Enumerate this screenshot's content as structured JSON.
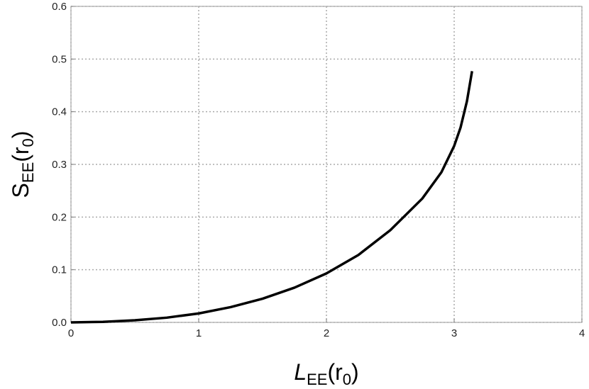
{
  "chart_data": {
    "type": "line",
    "xlabel": {
      "main": "L",
      "sub": "EE",
      "open": "(r",
      "sub2": "0",
      "close": ")"
    },
    "ylabel": {
      "main": "S",
      "sub": "EE",
      "open": "(r",
      "sub2": "0",
      "close": ")"
    },
    "x": [
      0,
      0.25,
      0.5,
      0.75,
      1,
      1.25,
      1.5,
      1.75,
      2,
      2.25,
      2.5,
      2.75,
      2.9,
      3,
      3.05,
      3.1,
      3.14
    ],
    "series": [
      {
        "color": "#000000",
        "values": [
          0,
          0.001,
          0.004,
          0.009,
          0.017,
          0.029,
          0.045,
          0.066,
          0.093,
          0.128,
          0.175,
          0.235,
          0.285,
          0.335,
          0.37,
          0.42,
          0.477
        ]
      }
    ],
    "xlim": [
      0,
      4
    ],
    "xticks": [
      0,
      1,
      2,
      3,
      4
    ],
    "ylim": [
      0,
      0.6
    ],
    "yticks": [
      {
        "value": 0,
        "label": "0.0"
      },
      0.1,
      0.2,
      0.3,
      0.4,
      0.5,
      0.6
    ],
    "grid": true
  }
}
